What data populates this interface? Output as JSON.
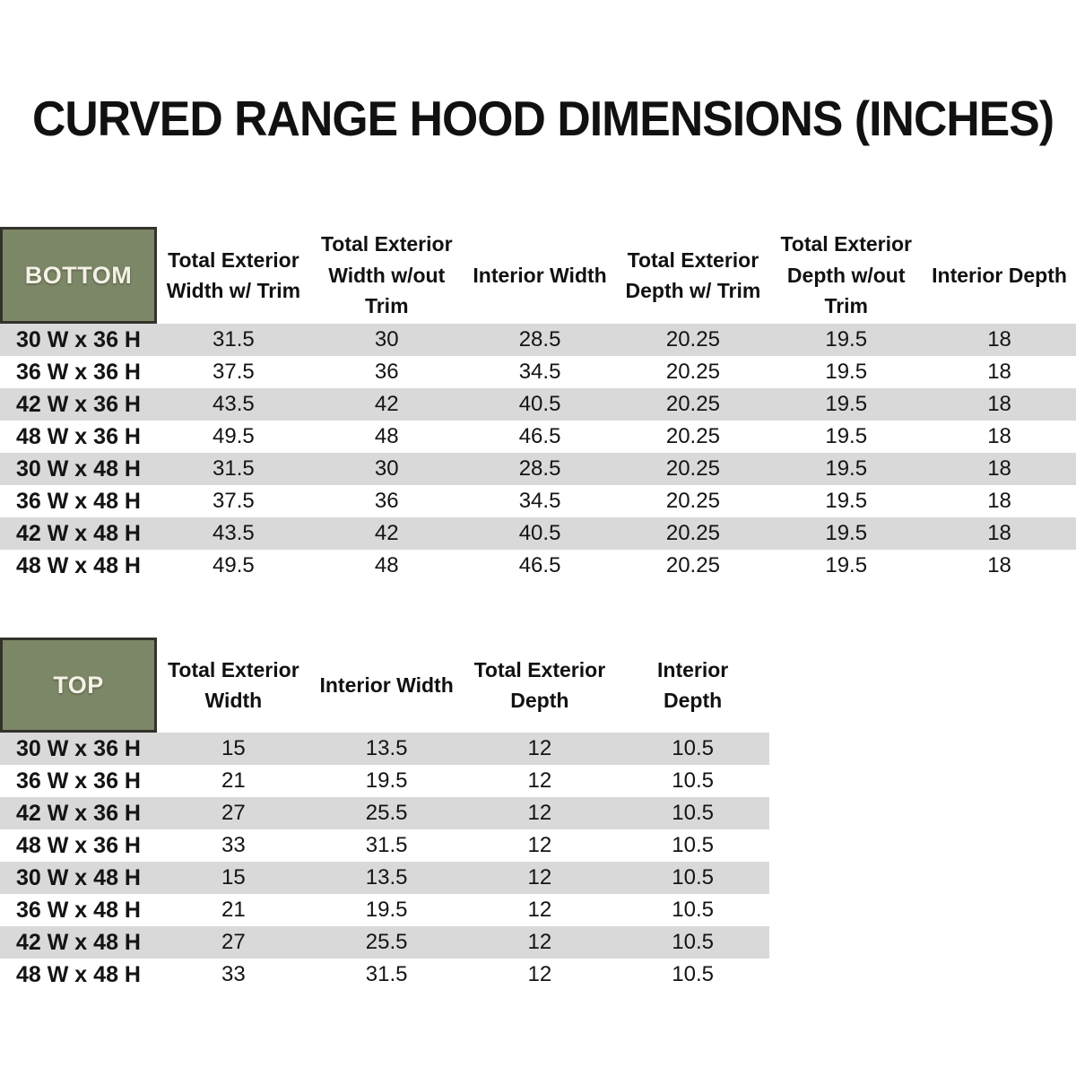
{
  "title": "CURVED RANGE HOOD DIMENSIONS (INCHES)",
  "colors": {
    "header_green": "#7c8767",
    "header_border": "#32322a",
    "stripe_gray": "#d9d9d9",
    "text": "#111111"
  },
  "bottom_table": {
    "label": "BOTTOM",
    "columns": [
      "Total Exterior Width w/ Trim",
      "Total Exterior Width w/out Trim",
      "Interior Width",
      "Total Exterior Depth w/ Trim",
      "Total Exterior Depth w/out Trim",
      "Interior Depth"
    ],
    "rows": [
      {
        "size": "30 W x 36 H",
        "values": [
          "31.5",
          "30",
          "28.5",
          "20.25",
          "19.5",
          "18"
        ]
      },
      {
        "size": "36 W x 36 H",
        "values": [
          "37.5",
          "36",
          "34.5",
          "20.25",
          "19.5",
          "18"
        ]
      },
      {
        "size": "42 W x 36 H",
        "values": [
          "43.5",
          "42",
          "40.5",
          "20.25",
          "19.5",
          "18"
        ]
      },
      {
        "size": "48 W x 36 H",
        "values": [
          "49.5",
          "48",
          "46.5",
          "20.25",
          "19.5",
          "18"
        ]
      },
      {
        "size": "30 W x 48 H",
        "values": [
          "31.5",
          "30",
          "28.5",
          "20.25",
          "19.5",
          "18"
        ]
      },
      {
        "size": "36 W x 48 H",
        "values": [
          "37.5",
          "36",
          "34.5",
          "20.25",
          "19.5",
          "18"
        ]
      },
      {
        "size": "42 W x 48 H",
        "values": [
          "43.5",
          "42",
          "40.5",
          "20.25",
          "19.5",
          "18"
        ]
      },
      {
        "size": "48 W x 48 H",
        "values": [
          "49.5",
          "48",
          "46.5",
          "20.25",
          "19.5",
          "18"
        ]
      }
    ]
  },
  "top_table": {
    "label": "TOP",
    "columns": [
      "Total Exterior Width",
      "Interior Width",
      "Total Exterior Depth",
      "Interior Depth"
    ],
    "rows": [
      {
        "size": "30 W x 36 H",
        "values": [
          "15",
          "13.5",
          "12",
          "10.5"
        ]
      },
      {
        "size": "36 W x 36 H",
        "values": [
          "21",
          "19.5",
          "12",
          "10.5"
        ]
      },
      {
        "size": "42 W x 36 H",
        "values": [
          "27",
          "25.5",
          "12",
          "10.5"
        ]
      },
      {
        "size": "48 W x 36 H",
        "values": [
          "33",
          "31.5",
          "12",
          "10.5"
        ]
      },
      {
        "size": "30 W x 48 H",
        "values": [
          "15",
          "13.5",
          "12",
          "10.5"
        ]
      },
      {
        "size": "36 W x 48 H",
        "values": [
          "21",
          "19.5",
          "12",
          "10.5"
        ]
      },
      {
        "size": "42 W x 48 H",
        "values": [
          "27",
          "25.5",
          "12",
          "10.5"
        ]
      },
      {
        "size": "48 W x 48 H",
        "values": [
          "33",
          "31.5",
          "12",
          "10.5"
        ]
      }
    ]
  }
}
